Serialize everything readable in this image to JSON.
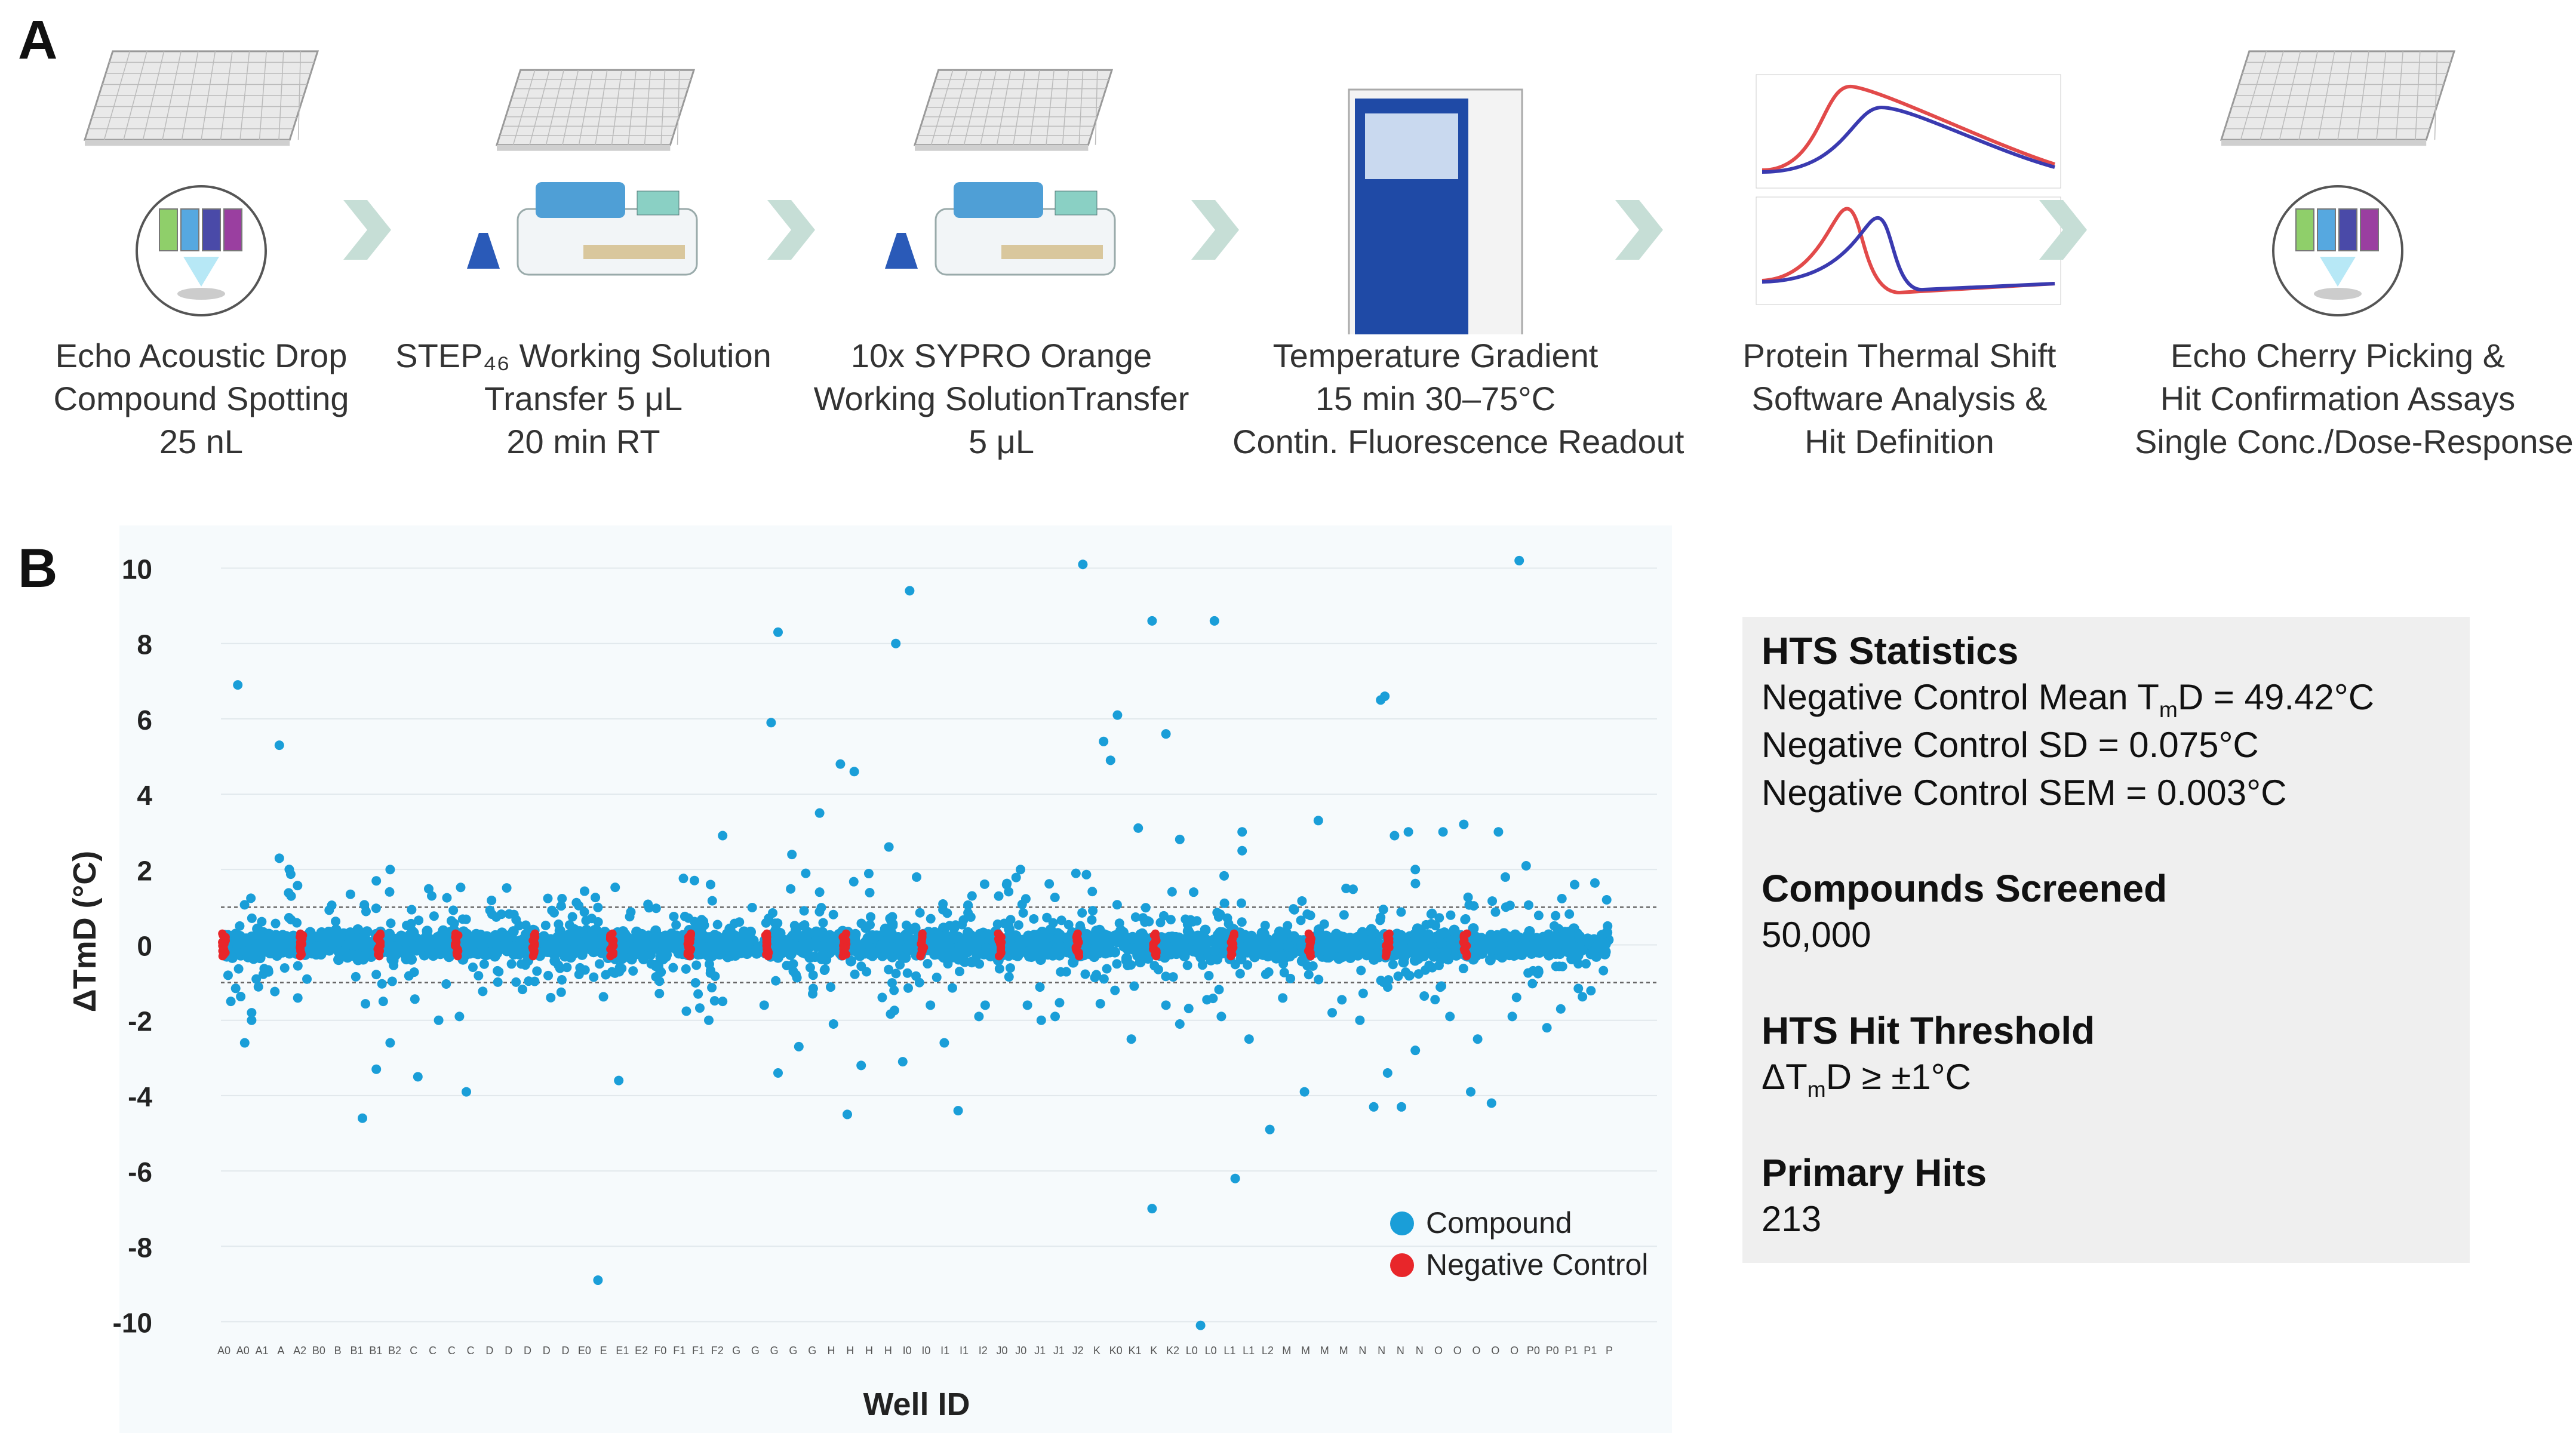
{
  "panel_a": {
    "letter": "A",
    "steps": [
      {
        "lines": [
          "Echo Acoustic Drop",
          "Compound Spotting",
          "25 nL"
        ],
        "icon": "echo-plate-icon"
      },
      {
        "lines": [
          "STEP₄₆ Working Solution",
          "Transfer 5 μL",
          "20 min RT"
        ],
        "icon": "dispenser-icon"
      },
      {
        "lines": [
          "10x SYPRO Orange",
          "Working SolutionTransfer",
          "5 μL"
        ],
        "icon": "dispenser-icon"
      },
      {
        "lines": [
          "Temperature Gradient",
          "15 min 30–75°C",
          "Contin. Fluorescence Readout"
        ],
        "icon": "qpcr-instrument-icon"
      },
      {
        "lines": [
          "Protein Thermal Shift",
          "Software Analysis &",
          "Hit Definition"
        ],
        "icon": "melt-curve-icon"
      },
      {
        "lines": [
          "Echo Cherry Picking &",
          "Hit Confirmation Assays",
          "Single Conc./Dose-Response"
        ],
        "icon": "echo-plate-icon"
      }
    ]
  },
  "panel_b": {
    "letter": "B",
    "stats": {
      "title": "HTS Statistics",
      "mean_prefix": "Negative Control Mean T",
      "mean_sub": "m",
      "mean_suffix": "D = 49.42°C",
      "sd": "Negative Control SD = 0.075°C",
      "sem": "Negative Control SEM = 0.003°C",
      "compounds_title": "Compounds Screened",
      "compounds_value": "50,000",
      "threshold_title": "HTS Hit Threshold",
      "threshold_prefix": "ΔT",
      "threshold_sub": "m",
      "threshold_suffix": "D ≥ ±1°C",
      "hits_title": "Primary Hits",
      "hits_value": "213"
    }
  },
  "chart_data": {
    "type": "scatter",
    "title": "",
    "xlabel": "Well ID",
    "ylabel": "ΔTmD (°C)",
    "ylim": [
      -10.5,
      10.5
    ],
    "yticks": [
      10,
      8,
      6,
      4,
      2,
      0,
      -2,
      -4,
      -6,
      -8,
      -10
    ],
    "threshold_lines": [
      1,
      -1
    ],
    "x_tick_labels": [
      "A0",
      "A0",
      "A1",
      "A",
      "A2",
      "B0",
      "B",
      "B1",
      "B1",
      "B2",
      "C",
      "C",
      "C",
      "C",
      "D",
      "D",
      "D",
      "D",
      "D",
      "E0",
      "E",
      "E1",
      "E2",
      "F0",
      "F1",
      "F1",
      "F2",
      "G",
      "G",
      "G",
      "G",
      "G",
      "H",
      "H",
      "H",
      "H",
      "I0",
      "I0",
      "I1",
      "I1",
      "I2",
      "J0",
      "J0",
      "J1",
      "J1",
      "J2",
      "K",
      "K0",
      "K1",
      "K",
      "K2",
      "L0",
      "L0",
      "L1",
      "L1",
      "L2",
      "M",
      "M",
      "M",
      "M",
      "N",
      "N",
      "N",
      "N",
      "O",
      "O",
      "O",
      "O",
      "O",
      "P0",
      "P0",
      "P1",
      "P1",
      "P"
    ],
    "legend": [
      {
        "name": "Compound",
        "color": "#1a9ed8"
      },
      {
        "name": "Negative Control",
        "color": "#e8262a"
      }
    ],
    "series": [
      {
        "name": "Compound",
        "color": "#1a9ed8",
        "band": [
          -0.45,
          0.45
        ],
        "outliers": [
          [
            0.01,
            6.9
          ],
          [
            0.04,
            5.3
          ],
          [
            0.04,
            2.3
          ],
          [
            0.02,
            -2.0
          ],
          [
            0.015,
            -2.6
          ],
          [
            0.02,
            -1.8
          ],
          [
            0.005,
            -1.5
          ],
          [
            0.11,
            1.7
          ],
          [
            0.12,
            2.0
          ],
          [
            0.115,
            -1.5
          ],
          [
            0.12,
            -2.6
          ],
          [
            0.11,
            -3.3
          ],
          [
            0.1,
            -4.6
          ],
          [
            0.14,
            -3.5
          ],
          [
            0.175,
            -3.9
          ],
          [
            0.17,
            -1.9
          ],
          [
            0.15,
            1.3
          ],
          [
            0.155,
            -2.0
          ],
          [
            0.27,
            -8.9
          ],
          [
            0.285,
            -3.6
          ],
          [
            0.36,
            2.9
          ],
          [
            0.35,
            -2.0
          ],
          [
            0.36,
            -1.5
          ],
          [
            0.395,
            5.9
          ],
          [
            0.4,
            8.3
          ],
          [
            0.43,
            3.5
          ],
          [
            0.445,
            4.8
          ],
          [
            0.455,
            4.6
          ],
          [
            0.41,
            2.4
          ],
          [
            0.42,
            1.9
          ],
          [
            0.43,
            1.4
          ],
          [
            0.4,
            -3.4
          ],
          [
            0.415,
            -2.7
          ],
          [
            0.44,
            -2.1
          ],
          [
            0.45,
            -4.5
          ],
          [
            0.46,
            -3.2
          ],
          [
            0.39,
            -1.6
          ],
          [
            0.425,
            -1.3
          ],
          [
            0.495,
            9.4
          ],
          [
            0.485,
            8.0
          ],
          [
            0.48,
            2.6
          ],
          [
            0.5,
            1.8
          ],
          [
            0.51,
            -1.6
          ],
          [
            0.52,
            -2.6
          ],
          [
            0.53,
            -4.4
          ],
          [
            0.49,
            -3.1
          ],
          [
            0.545,
            -1.9
          ],
          [
            0.54,
            1.3
          ],
          [
            0.565,
            1.6
          ],
          [
            0.575,
            2.0
          ],
          [
            0.58,
            -1.6
          ],
          [
            0.59,
            -2.0
          ],
          [
            0.6,
            -1.9
          ],
          [
            0.62,
            10.1
          ],
          [
            0.645,
            6.1
          ],
          [
            0.635,
            5.4
          ],
          [
            0.64,
            4.9
          ],
          [
            0.66,
            3.1
          ],
          [
            0.67,
            -7.0
          ],
          [
            0.68,
            5.6
          ],
          [
            0.68,
            -1.6
          ],
          [
            0.69,
            -2.1
          ],
          [
            0.655,
            -2.5
          ],
          [
            0.615,
            1.9
          ],
          [
            0.67,
            8.6
          ],
          [
            0.69,
            2.8
          ],
          [
            0.715,
            8.6
          ],
          [
            0.72,
            -1.9
          ],
          [
            0.73,
            -6.2
          ],
          [
            0.705,
            -10.1
          ],
          [
            0.735,
            3.0
          ],
          [
            0.735,
            2.5
          ],
          [
            0.74,
            -2.5
          ],
          [
            0.755,
            -4.9
          ],
          [
            0.7,
            1.4
          ],
          [
            0.78,
            -3.9
          ],
          [
            0.79,
            3.3
          ],
          [
            0.8,
            -1.8
          ],
          [
            0.81,
            1.5
          ],
          [
            0.83,
            -4.3
          ],
          [
            0.845,
            2.9
          ],
          [
            0.85,
            -4.3
          ],
          [
            0.855,
            3.0
          ],
          [
            0.86,
            -2.8
          ],
          [
            0.84,
            -3.4
          ],
          [
            0.82,
            -2.0
          ],
          [
            0.835,
            6.5
          ],
          [
            0.838,
            6.6
          ],
          [
            0.86,
            2.0
          ],
          [
            0.88,
            3.0
          ],
          [
            0.895,
            3.2
          ],
          [
            0.9,
            -3.9
          ],
          [
            0.915,
            -4.2
          ],
          [
            0.92,
            3.0
          ],
          [
            0.905,
            -2.5
          ],
          [
            0.885,
            -1.9
          ],
          [
            0.925,
            1.8
          ],
          [
            0.935,
            10.2
          ],
          [
            0.94,
            2.1
          ],
          [
            0.955,
            -2.2
          ],
          [
            0.965,
            -1.7
          ],
          [
            0.975,
            1.6
          ],
          [
            0.93,
            -1.9
          ]
        ]
      },
      {
        "name": "Negative Control",
        "color": "#e8262a",
        "positions": [
          0.0,
          0.056,
          0.112,
          0.168,
          0.224,
          0.28,
          0.336,
          0.392,
          0.448,
          0.504,
          0.56,
          0.616,
          0.672,
          0.728,
          0.784,
          0.84,
          0.896
        ],
        "band": [
          -0.3,
          0.3
        ]
      }
    ]
  }
}
